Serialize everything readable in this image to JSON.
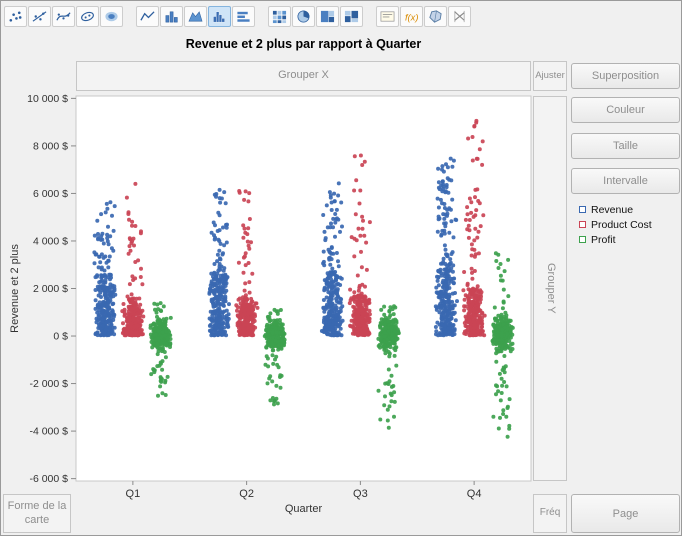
{
  "title": "Revenue et 2 plus par rapport à Quarter",
  "toolbar": {
    "selected": "histogram",
    "groups": [
      [
        "scatter-points",
        "fit-line",
        "smoother",
        "ellipse",
        "contour"
      ],
      [
        "line",
        "bar",
        "area",
        "histogram",
        "interval-bars"
      ],
      [
        "heatmap",
        "pie",
        "treemap",
        "mosaic"
      ],
      [
        "caption-box",
        "formula",
        "map-shapes",
        "parallel"
      ]
    ]
  },
  "zones": {
    "group_x": "Grouper X",
    "fit": "Ajuster",
    "group_y": "Grouper Y",
    "freq": "Fréq",
    "page": "Page",
    "map_shape": "Forme de la carte"
  },
  "buttons": [
    "Superposition",
    "Couleur",
    "Taille",
    "Intervalle"
  ],
  "legend": [
    {
      "label": "Revenue",
      "color": "#3968b1"
    },
    {
      "label": "Product Cost",
      "color": "#ca4455"
    },
    {
      "label": "Profit",
      "color": "#3da14d"
    }
  ],
  "chart_data": {
    "type": "scatter",
    "title": "Revenue et 2 plus par rapport à Quarter",
    "xlabel": "Quarter",
    "ylabel": "Revenue et 2 plus",
    "categories": [
      "Q1",
      "Q2",
      "Q3",
      "Q4"
    ],
    "ylim": [
      -6100,
      10100
    ],
    "y_ticks": [
      {
        "label": "10 000 $",
        "value": 10000
      },
      {
        "label": "8 000 $",
        "value": 8000
      },
      {
        "label": "6 000 $",
        "value": 6000
      },
      {
        "label": "4 000 $",
        "value": 4000
      },
      {
        "label": "2 000 $",
        "value": 2000
      },
      {
        "label": "0 $",
        "value": 0
      },
      {
        "label": "-2 000 $",
        "value": -2000
      },
      {
        "label": "-4 000 $",
        "value": -4000
      },
      {
        "label": "-6 000 $",
        "value": -6000
      }
    ],
    "grid": false,
    "legend_position": "right",
    "series": [
      {
        "name": "Revenue",
        "color": "#3968b1",
        "dist": "bottom",
        "offset": -28,
        "quarters": [
          {
            "cluster": [
              30,
              2600
            ],
            "n": 250,
            "tails": [
              [
                2600,
                5800,
                45
              ]
            ]
          },
          {
            "cluster": [
              30,
              2650
            ],
            "n": 250,
            "tails": [
              [
                2650,
                6300,
                45
              ]
            ]
          },
          {
            "cluster": [
              30,
              2700
            ],
            "n": 250,
            "tails": [
              [
                2700,
                6500,
                50
              ]
            ]
          },
          {
            "cluster": [
              30,
              3100
            ],
            "n": 250,
            "tails": [
              [
                3100,
                7600,
                70
              ]
            ]
          }
        ]
      },
      {
        "name": "Product Cost",
        "color": "#ca4455",
        "dist": "bottom",
        "offset": 0,
        "quarters": [
          {
            "cluster": [
              30,
              1600
            ],
            "n": 250,
            "tails": [
              [
                1600,
                4500,
                22
              ],
              [
                4500,
                6600,
                8
              ]
            ]
          },
          {
            "cluster": [
              30,
              1650
            ],
            "n": 250,
            "tails": [
              [
                1650,
                4600,
                22
              ],
              [
                4600,
                6300,
                8
              ]
            ]
          },
          {
            "cluster": [
              30,
              1700
            ],
            "n": 250,
            "tails": [
              [
                1700,
                5000,
                24
              ],
              [
                5000,
                8100,
                10
              ]
            ]
          },
          {
            "cluster": [
              30,
              2000
            ],
            "n": 250,
            "tails": [
              [
                2000,
                6000,
                38
              ],
              [
                6000,
                9300,
                14
              ]
            ]
          }
        ]
      },
      {
        "name": "Profit",
        "color": "#3da14d",
        "dist": "center",
        "offset": 28,
        "quarters": [
          {
            "cluster": [
              -650,
              800
            ],
            "n": 250,
            "tails": [
              [
                -2600,
                -650,
                26
              ],
              [
                800,
                1400,
                10
              ]
            ]
          },
          {
            "cluster": [
              -700,
              800
            ],
            "n": 250,
            "tails": [
              [
                -2900,
                -700,
                26
              ],
              [
                800,
                1100,
                8
              ]
            ]
          },
          {
            "cluster": [
              -650,
              900
            ],
            "n": 250,
            "tails": [
              [
                -3900,
                -650,
                28
              ],
              [
                900,
                1300,
                9
              ]
            ]
          },
          {
            "cluster": [
              -800,
              1000
            ],
            "n": 250,
            "tails": [
              [
                -4400,
                -800,
                30
              ],
              [
                1000,
                3500,
                16
              ]
            ]
          }
        ]
      }
    ]
  }
}
